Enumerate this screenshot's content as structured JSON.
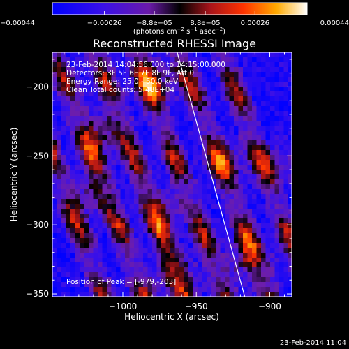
{
  "chart_data": {
    "type": "heatmap",
    "title": "Reconstructed RHESSI Image",
    "xlabel": "Heliocentric X (arcsec)",
    "ylabel": "Heliocentric Y (arcsec)",
    "xlim": [
      -1048,
      -885
    ],
    "ylim": [
      -352,
      -175
    ],
    "x_ticks": [
      -1000,
      -950,
      -900
    ],
    "x_tick_labels": [
      "−1000",
      "−950",
      "−900"
    ],
    "y_ticks": [
      -200,
      -250,
      -300,
      -350
    ],
    "y_tick_labels": [
      "−200",
      "−250",
      "−300",
      "−350"
    ],
    "colorbar": {
      "range": [
        -0.00044,
        0.00044
      ],
      "ticks": [
        -0.00044,
        -0.00026,
        -8.8e-05,
        8.8e-05,
        0.00026,
        0.00044
      ],
      "tick_labels": [
        "−0.00044",
        "−0.00026",
        "−8.8e−05",
        "8.8e−05",
        "0.00026",
        "0.00044"
      ],
      "units_main": "(photons cm",
      "units_exp1": "−2",
      "units_mid": " s",
      "units_exp2": "−1",
      "units_tail": " asec",
      "units_exp3": "−2",
      "units_close": ")"
    },
    "annotations": [
      "23-Feb-2014 14:04:56.000 to 14:15:00.000",
      "Detectors: 3F 5F 6F 7F 8F 9F, Att 0",
      "Energy Range: 25.0 - 50.0 keV",
      "Clean      Total counts: 5.48E+04"
    ],
    "peak_label": "Position of Peak = [-979,-203]",
    "limb_line": {
      "points": [
        [
          -963,
          -175
        ],
        [
          -917,
          -352
        ]
      ]
    },
    "stripes": {
      "direction": [
        -0.37,
        -1
      ],
      "offsets": [
        -155,
        -100,
        -45,
        10,
        68,
        125
      ],
      "blobs": [
        {
          "x": -978,
          "y": -197,
          "amp": 0.9
        },
        {
          "x": -1015,
          "y": -235,
          "amp": 0.75
        },
        {
          "x": -1022,
          "y": -278,
          "amp": 0.6
        },
        {
          "x": -975,
          "y": -290,
          "amp": 0.7
        },
        {
          "x": -965,
          "y": -335,
          "amp": 0.75
        },
        {
          "x": -930,
          "y": -255,
          "amp": 0.6
        },
        {
          "x": -915,
          "y": -325,
          "amp": 0.8
        },
        {
          "x": -893,
          "y": -255,
          "amp": 0.45
        }
      ]
    }
  },
  "footer": {
    "date": "23-Feb-2014 11:04"
  }
}
